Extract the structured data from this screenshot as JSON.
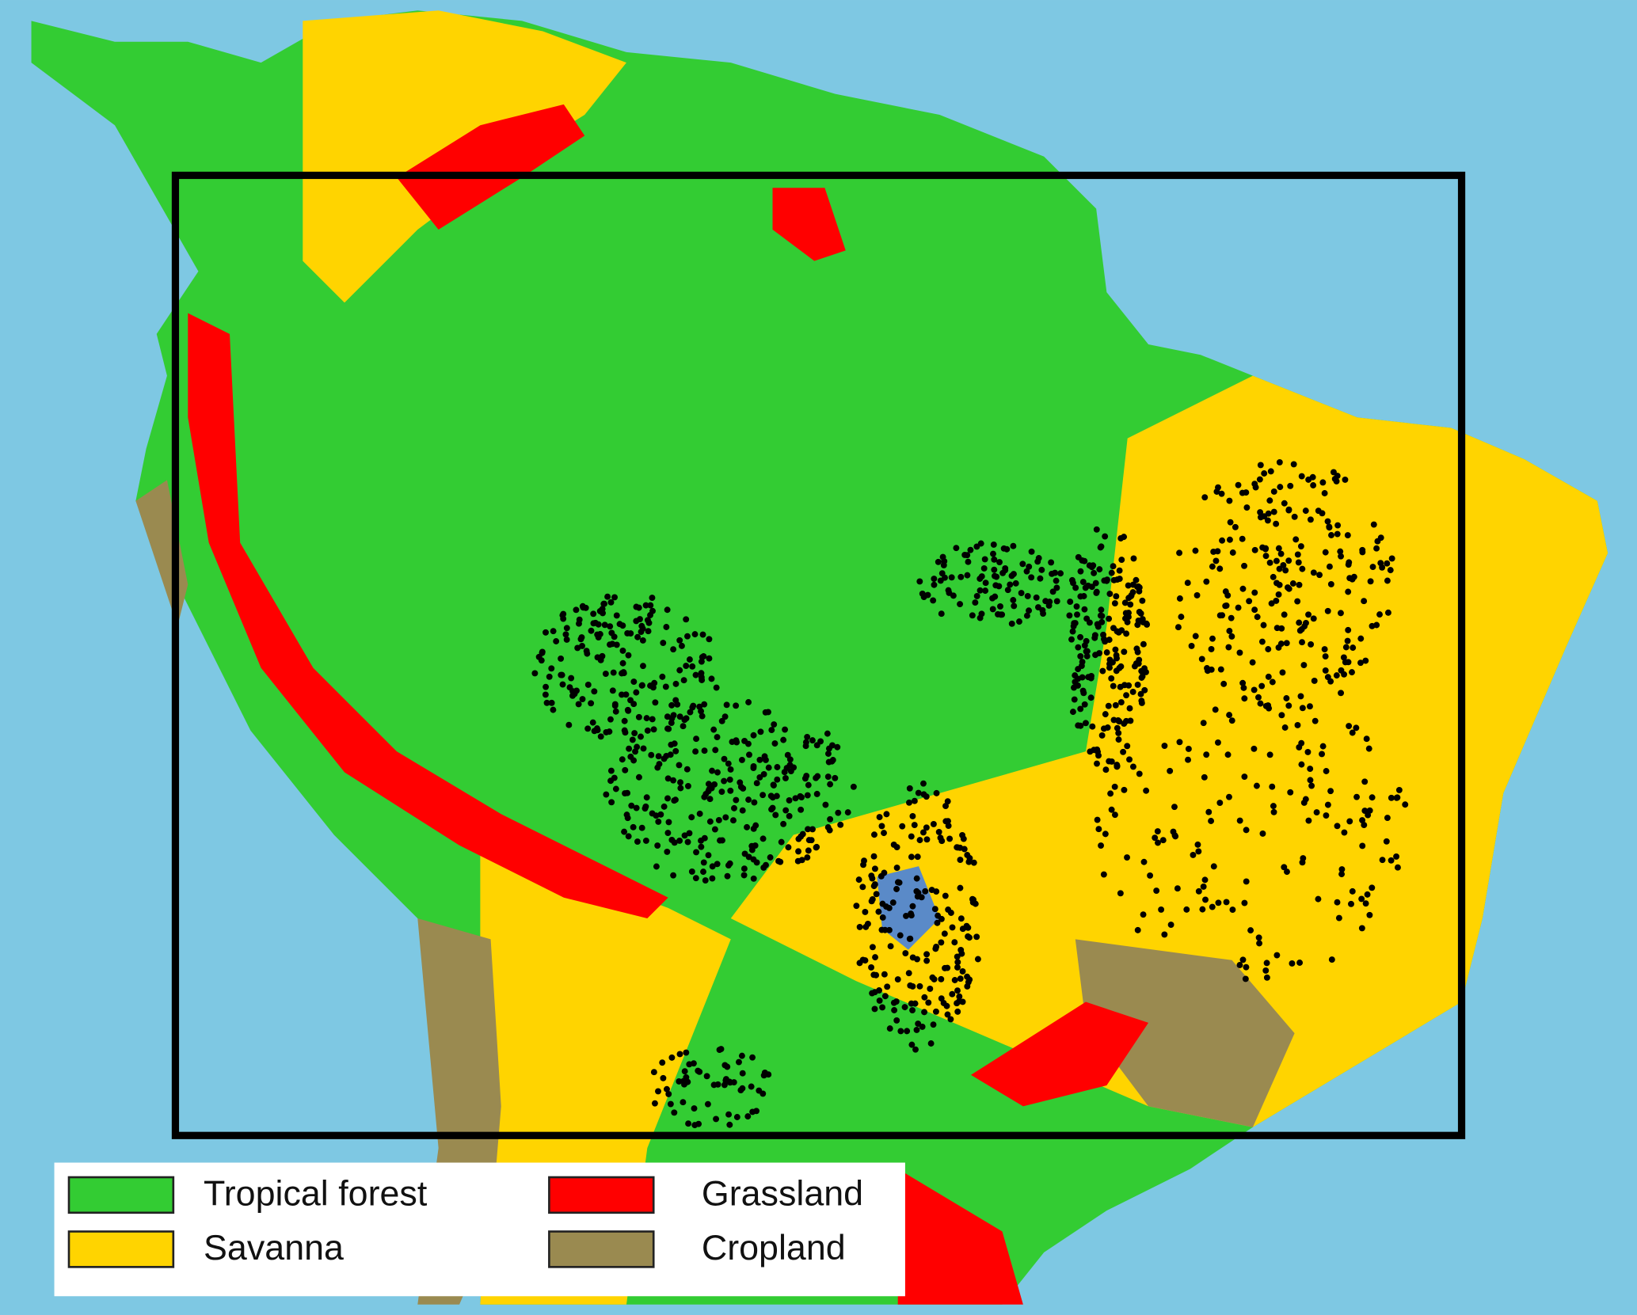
{
  "legend": {
    "items": [
      {
        "label": "Tropical forest",
        "color": "#33cc33"
      },
      {
        "label": "Savanna",
        "color": "#ffd400"
      },
      {
        "label": "Grassland",
        "color": "#ff0000"
      },
      {
        "label": "Cropland",
        "color": "#9a8a50"
      }
    ]
  }
}
